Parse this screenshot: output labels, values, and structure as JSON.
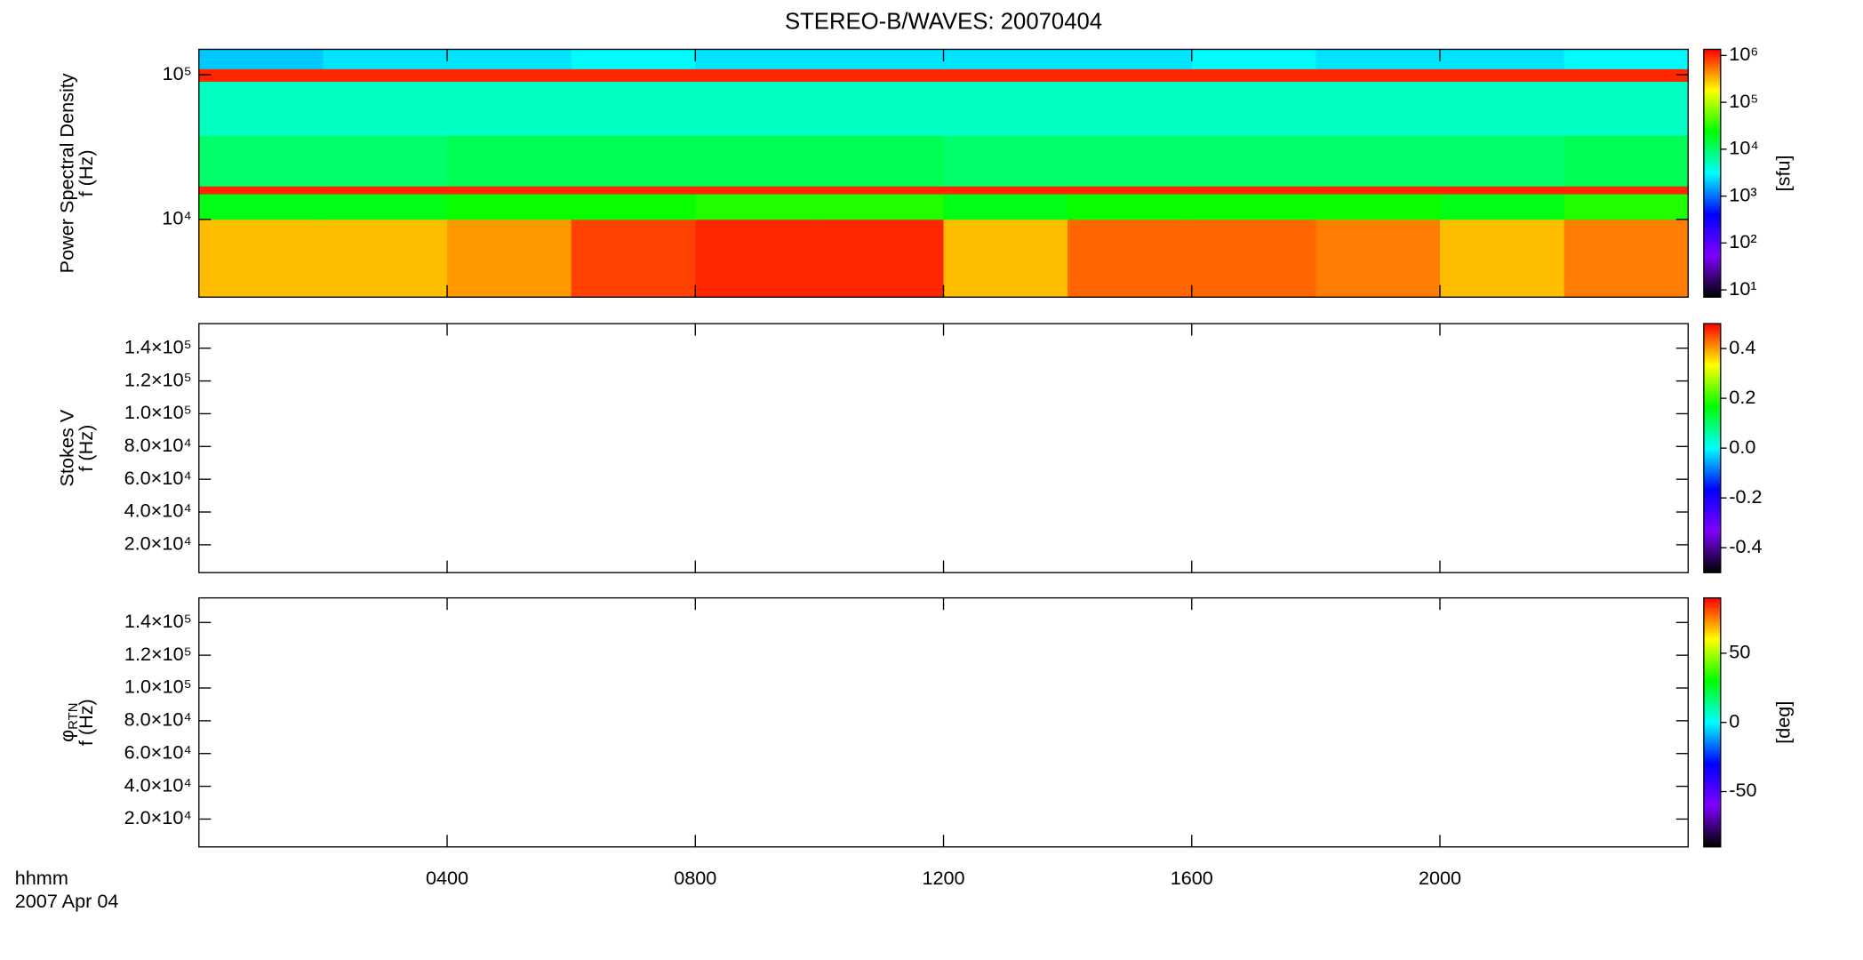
{
  "chart_data": [
    {
      "type": "heatmap",
      "title": "STEREO-B/WAVES: 20070404",
      "ylabel": [
        "Power Spectral Density",
        "f (Hz)"
      ],
      "ylog": true,
      "ylim": [
        2900,
        150000
      ],
      "yticks": [
        {
          "value": 10000,
          "label": "10⁴"
        },
        {
          "value": 100000,
          "label": "10⁵"
        }
      ],
      "xbins": [
        0,
        2,
        4,
        6,
        8,
        10,
        12,
        14,
        16,
        18,
        20,
        22,
        24
      ],
      "ybins": [
        2900,
        10000,
        15000,
        17000,
        38000,
        90000,
        110000,
        150000
      ],
      "values": [
        [
          300000,
          300000,
          400000,
          800000,
          1000000,
          1000000,
          300000,
          600000,
          600000,
          500000,
          300000,
          500000
        ],
        [
          20000,
          20000,
          25000,
          25000,
          30000,
          30000,
          20000,
          25000,
          25000,
          25000,
          20000,
          30000
        ],
        [
          1000000,
          1000000,
          1000000,
          1000000,
          1000000,
          1000000,
          1000000,
          1000000,
          1000000,
          1000000,
          1000000,
          1000000
        ],
        [
          10000,
          10000,
          12000,
          12000,
          12000,
          12000,
          10000,
          10000,
          10000,
          10000,
          10000,
          12000
        ],
        [
          5000,
          5000,
          5000,
          5000,
          5000,
          5000,
          5000,
          5000,
          5000,
          5000,
          5000,
          5000
        ],
        [
          1000000,
          1000000,
          1000000,
          1000000,
          1000000,
          1000000,
          1000000,
          1000000,
          1000000,
          1000000,
          1000000,
          1000000
        ],
        [
          2000,
          2500,
          2500,
          3000,
          2500,
          2500,
          2500,
          2500,
          3000,
          2500,
          2500,
          3000
        ]
      ],
      "clog": true,
      "clim": [
        7,
        1350000
      ],
      "cticks": [
        {
          "value": 10,
          "label": "10¹"
        },
        {
          "value": 100,
          "label": "10²"
        },
        {
          "value": 1000,
          "label": "10³"
        },
        {
          "value": 10000,
          "label": "10⁴"
        },
        {
          "value": 100000,
          "label": "10⁵"
        },
        {
          "value": 1000000,
          "label": "10⁶"
        }
      ],
      "clabel": "[sfu]"
    },
    {
      "type": "heatmap",
      "ylabel": [
        "Stokes V",
        "f (Hz)"
      ],
      "ylim": [
        3000,
        155000
      ],
      "yticks": [
        {
          "value": 20000,
          "label": "2.0×10⁴"
        },
        {
          "value": 40000,
          "label": "4.0×10⁴"
        },
        {
          "value": 60000,
          "label": "6.0×10⁴"
        },
        {
          "value": 80000,
          "label": "8.0×10⁴"
        },
        {
          "value": 100000,
          "label": "1.0×10⁵"
        },
        {
          "value": 120000,
          "label": "1.2×10⁵"
        },
        {
          "value": 140000,
          "label": "1.4×10⁵"
        }
      ],
      "clim": [
        -0.5,
        0.5
      ],
      "cticks": [
        -0.4,
        -0.2,
        {
          "value": 0,
          "label": "0.0"
        },
        0.2,
        0.4
      ]
    },
    {
      "type": "heatmap",
      "ylabel": [
        "φ",
        "f (Hz)"
      ],
      "ylabel_subscript": "RTN",
      "ylim": [
        3000,
        155000
      ],
      "yticks": [
        {
          "value": 20000,
          "label": "2.0×10⁴"
        },
        {
          "value": 40000,
          "label": "4.0×10⁴"
        },
        {
          "value": 60000,
          "label": "6.0×10⁴"
        },
        {
          "value": 80000,
          "label": "8.0×10⁴"
        },
        {
          "value": 100000,
          "label": "1.0×10⁵"
        },
        {
          "value": 120000,
          "label": "1.2×10⁵"
        },
        {
          "value": 140000,
          "label": "1.4×10⁵"
        }
      ],
      "clim": [
        -90,
        90
      ],
      "cticks": [
        -50,
        0,
        50
      ],
      "clabel": "[deg]",
      "xlim": [
        0,
        24
      ],
      "xticks": [
        {
          "value": 4,
          "label": "0400"
        },
        {
          "value": 8,
          "label": "0800"
        },
        {
          "value": 12,
          "label": "1200"
        },
        {
          "value": 16,
          "label": "1600"
        },
        {
          "value": 20,
          "label": "2000"
        }
      ],
      "xlabel": [
        "hhmm",
        "2007 Apr 04"
      ]
    }
  ],
  "colormap": [
    "#000000",
    "#7f00ff",
    "#0000ff",
    "#00ffff",
    "#00ff00",
    "#ffff00",
    "#ff0000"
  ]
}
